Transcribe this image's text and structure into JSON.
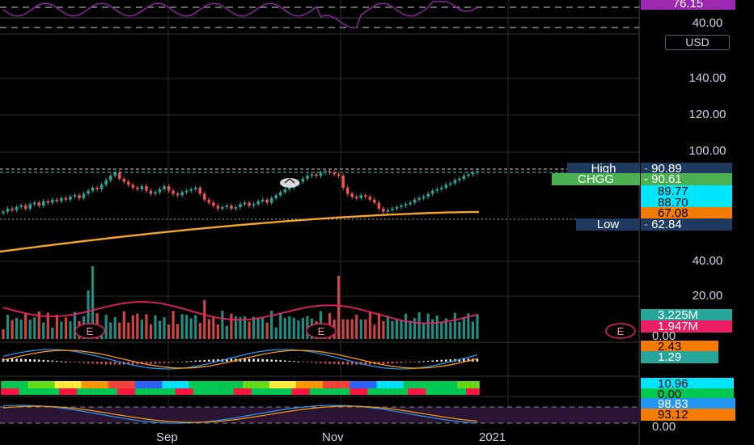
{
  "chart_data": {
    "type": "candlestick",
    "symbol": "CHGG",
    "currency": "USD",
    "x_labels": [
      "Sep",
      "Nov",
      "2021"
    ],
    "price_axis_ticks": [
      "140.00",
      "120.00",
      "100.00",
      "40.00",
      "20.00"
    ],
    "ylim": [
      0,
      160
    ],
    "price_levels": {
      "high": {
        "label": "High",
        "value": "90.89"
      },
      "last": {
        "label": "CHGG",
        "value": "90.61"
      },
      "ma_1": "89.77",
      "ma_2": "88.70",
      "ma_200": "67.08",
      "low": {
        "label": "Low",
        "value": "62.84"
      }
    },
    "ohlc_sample_close": [
      64,
      66,
      65,
      67,
      68,
      66,
      69,
      70,
      68,
      71,
      70,
      72,
      71,
      73,
      72,
      74,
      75,
      73,
      76,
      78,
      80,
      79,
      82,
      85,
      88,
      90,
      86,
      84,
      82,
      80,
      79,
      81,
      78,
      76,
      77,
      79,
      81,
      78,
      76,
      75,
      77,
      78,
      79,
      80,
      76,
      72,
      70,
      68,
      66,
      67,
      68,
      66,
      67,
      69,
      70,
      68,
      69,
      71,
      72,
      70,
      73,
      75,
      77,
      79,
      80,
      82,
      84,
      86,
      88,
      89,
      88,
      90,
      91,
      90,
      89,
      88,
      80,
      76,
      74,
      73,
      75,
      74,
      72,
      70,
      66,
      64,
      65,
      66,
      67,
      68,
      69,
      70,
      72,
      73,
      74,
      76,
      78,
      79,
      80,
      82,
      83,
      85,
      86,
      88,
      89,
      90,
      91
    ],
    "indicators": {
      "rsi": {
        "value": "76.15",
        "level": "40.00"
      },
      "volume": {
        "value": "3.225M",
        "avg": "1.947M",
        "zero": "0.00",
        "earnings_marker": "E"
      },
      "macd": {
        "macd": "2.43",
        "signal": "1.29"
      },
      "osc": {
        "value": "10.96",
        "zero": "0.00"
      },
      "stoch": {
        "k": "98.83",
        "d": "93.12",
        "zero": "0.00"
      }
    },
    "colors": {
      "up": "#26a69a",
      "down": "#ef5350",
      "ma200": "#f5a623",
      "volume_ma": "#e91e63",
      "rsi": "#9c27b0",
      "high_bg": "#1e3a5f",
      "last_bg": "#4caf50",
      "ma_bg": "#00e5ff",
      "ma200_bg": "#f57c00",
      "vol_bg": "#26a69a",
      "vol_avg_bg": "#e91e63",
      "stoch_k_bg": "#2196f3",
      "stoch_d_bg": "#f57c00"
    }
  }
}
